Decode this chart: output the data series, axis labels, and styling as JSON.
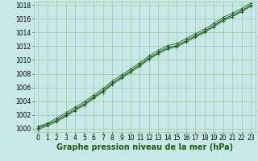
{
  "xlabel": "Graphe pression niveau de la mer (hPa)",
  "ylabel": "",
  "bg_color": "#c8e8e8",
  "grid_color": "#99bb99",
  "line_color": "#1a5c1a",
  "marker_color": "#1a5c1a",
  "x_values": [
    0,
    1,
    2,
    3,
    4,
    5,
    6,
    7,
    8,
    9,
    10,
    11,
    12,
    13,
    14,
    15,
    16,
    17,
    18,
    19,
    20,
    21,
    22,
    23
  ],
  "y_main": [
    1000.1,
    1000.6,
    1001.2,
    1002.0,
    1002.8,
    1003.6,
    1004.6,
    1005.5,
    1006.6,
    1007.5,
    1008.4,
    1009.3,
    1010.3,
    1011.1,
    1011.8,
    1012.1,
    1012.8,
    1013.5,
    1014.2,
    1015.0,
    1015.9,
    1016.5,
    1017.2,
    1018.0
  ],
  "y_upper": [
    1000.3,
    1000.8,
    1001.5,
    1002.3,
    1003.1,
    1003.9,
    1004.9,
    1005.8,
    1006.9,
    1007.8,
    1008.7,
    1009.6,
    1010.6,
    1011.4,
    1012.1,
    1012.4,
    1013.1,
    1013.8,
    1014.5,
    1015.3,
    1016.2,
    1016.8,
    1017.5,
    1018.3
  ],
  "y_lower": [
    999.9,
    1000.4,
    1001.0,
    1001.8,
    1002.6,
    1003.4,
    1004.4,
    1005.3,
    1006.4,
    1007.3,
    1008.2,
    1009.1,
    1010.1,
    1010.9,
    1011.6,
    1011.9,
    1012.6,
    1013.3,
    1014.0,
    1014.8,
    1015.7,
    1016.3,
    1017.0,
    1017.8
  ],
  "ylim": [
    999.5,
    1018.5
  ],
  "xlim": [
    -0.5,
    23.5
  ],
  "yticks": [
    1000,
    1002,
    1004,
    1006,
    1008,
    1010,
    1012,
    1014,
    1016,
    1018
  ],
  "xticks": [
    0,
    1,
    2,
    3,
    4,
    5,
    6,
    7,
    8,
    9,
    10,
    11,
    12,
    13,
    14,
    15,
    16,
    17,
    18,
    19,
    20,
    21,
    22,
    23
  ],
  "tick_fontsize": 5.5,
  "xlabel_fontsize": 7.0,
  "marker_size": 2.5,
  "fig_width": 3.2,
  "fig_height": 2.0,
  "dpi": 100
}
